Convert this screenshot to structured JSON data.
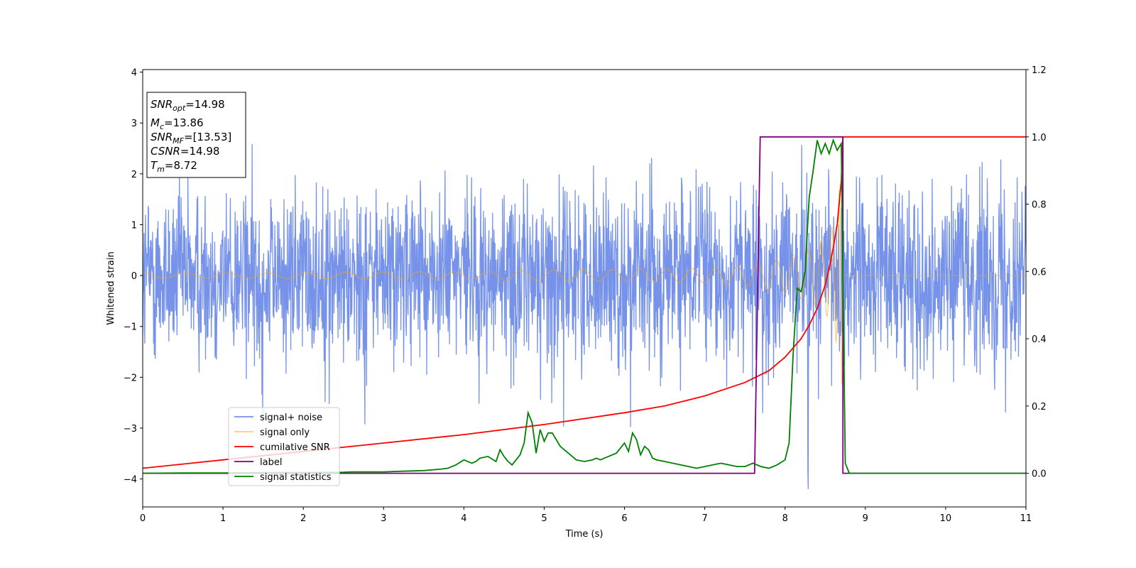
{
  "chart_data": {
    "type": "line",
    "xlabel": "Time (s)",
    "ylabel": "Whitened strain",
    "xlim": [
      0,
      11
    ],
    "ylim_left": [
      -4.55,
      4.05
    ],
    "ylim_right": [
      -0.1,
      1.2
    ],
    "x_ticks": [
      "0",
      "1",
      "2",
      "3",
      "4",
      "5",
      "6",
      "7",
      "8",
      "9",
      "10",
      "11"
    ],
    "y_ticks_left": [
      "4",
      "3",
      "2",
      "1",
      "0",
      "−1",
      "−2",
      "−3",
      "−4"
    ],
    "y_ticks_right": [
      "1.2",
      "1.0",
      "0.8",
      "0.6",
      "0.4",
      "0.2",
      "0.0"
    ],
    "grid": false,
    "legend_position": "lower-left",
    "annotation": [
      {
        "symbol": "SNR",
        "sub": "opt",
        "value": "=14.98"
      },
      {
        "symbol": "M",
        "sub": "c",
        "value": "=13.86"
      },
      {
        "symbol": "SNR",
        "sub": "MF",
        "value": "=[13.53]"
      },
      {
        "symbol": "CSNR",
        "sub": "",
        "value": "=14.98"
      },
      {
        "symbol": "T",
        "sub": "m",
        "value": "=8.72"
      }
    ],
    "series": [
      {
        "name": "signal+ noise",
        "color": "#4169e1",
        "axis": "left",
        "description": "noisy whitened strain, amplitude about ±2.5, spikes up to 3.6 and down to -4.2"
      },
      {
        "name": "signal only",
        "color": "#ffa500",
        "axis": "left",
        "description": "chirp oscillation growing until merger at 8.72 s, then zero",
        "envelope_x": [
          0,
          1,
          2,
          3,
          4,
          5,
          6,
          7,
          7.5,
          8,
          8.2,
          8.4,
          8.5,
          8.6,
          8.7,
          8.72
        ],
        "envelope_y": [
          0.05,
          0.05,
          0.06,
          0.07,
          0.08,
          0.1,
          0.12,
          0.15,
          0.2,
          0.35,
          0.45,
          0.6,
          0.75,
          1.0,
          1.9,
          2.6
        ]
      },
      {
        "name": "cumilative SNR",
        "color": "#ff0000",
        "axis": "right",
        "x": [
          0,
          1,
          2,
          3,
          4,
          5,
          6,
          6.5,
          7,
          7.5,
          7.8,
          8,
          8.2,
          8.3,
          8.4,
          8.5,
          8.55,
          8.6,
          8.65,
          8.7,
          8.72,
          11
        ],
        "y": [
          0.015,
          0.04,
          0.065,
          0.09,
          0.115,
          0.145,
          0.18,
          0.2,
          0.23,
          0.27,
          0.305,
          0.345,
          0.4,
          0.44,
          0.49,
          0.56,
          0.61,
          0.67,
          0.74,
          0.87,
          1.0,
          1.0
        ]
      },
      {
        "name": "label",
        "color": "#800080",
        "axis": "right",
        "x": [
          0,
          7.62,
          7.69,
          8.72,
          8.72,
          11
        ],
        "y": [
          0,
          0,
          1,
          1,
          0,
          0
        ]
      },
      {
        "name": "signal statistics",
        "color": "#008000",
        "axis": "right",
        "x": [
          0,
          0.5,
          1,
          1.5,
          2,
          2.5,
          2.6,
          3,
          3.2,
          3.5,
          3.7,
          3.8,
          3.9,
          4,
          4.1,
          4.15,
          4.2,
          4.3,
          4.4,
          4.45,
          4.5,
          4.55,
          4.6,
          4.65,
          4.7,
          4.75,
          4.8,
          4.85,
          4.9,
          4.95,
          5,
          5.05,
          5.1,
          5.2,
          5.3,
          5.4,
          5.5,
          5.6,
          5.65,
          5.7,
          5.8,
          5.9,
          6,
          6.05,
          6.1,
          6.15,
          6.2,
          6.25,
          6.3,
          6.35,
          6.4,
          6.5,
          6.6,
          6.7,
          6.8,
          6.9,
          7,
          7.1,
          7.2,
          7.3,
          7.4,
          7.5,
          7.6,
          7.7,
          7.8,
          7.9,
          8,
          8.05,
          8.1,
          8.15,
          8.2,
          8.25,
          8.3,
          8.35,
          8.4,
          8.45,
          8.5,
          8.55,
          8.6,
          8.65,
          8.7,
          8.75,
          8.8,
          11
        ],
        "y": [
          0,
          0.001,
          0.001,
          0.002,
          0.002,
          0.003,
          0.004,
          0.004,
          0.006,
          0.008,
          0.012,
          0.015,
          0.025,
          0.04,
          0.03,
          0.035,
          0.045,
          0.05,
          0.035,
          0.07,
          0.05,
          0.035,
          0.025,
          0.04,
          0.055,
          0.09,
          0.18,
          0.15,
          0.06,
          0.13,
          0.095,
          0.12,
          0.12,
          0.08,
          0.06,
          0.04,
          0.035,
          0.04,
          0.045,
          0.04,
          0.05,
          0.06,
          0.09,
          0.065,
          0.12,
          0.1,
          0.055,
          0.08,
          0.07,
          0.045,
          0.04,
          0.035,
          0.03,
          0.025,
          0.02,
          0.015,
          0.02,
          0.025,
          0.03,
          0.025,
          0.02,
          0.02,
          0.03,
          0.02,
          0.015,
          0.025,
          0.04,
          0.09,
          0.35,
          0.55,
          0.54,
          0.6,
          0.82,
          0.9,
          0.99,
          0.95,
          0.98,
          0.95,
          0.99,
          0.96,
          0.98,
          0.03,
          0,
          0
        ]
      }
    ]
  }
}
